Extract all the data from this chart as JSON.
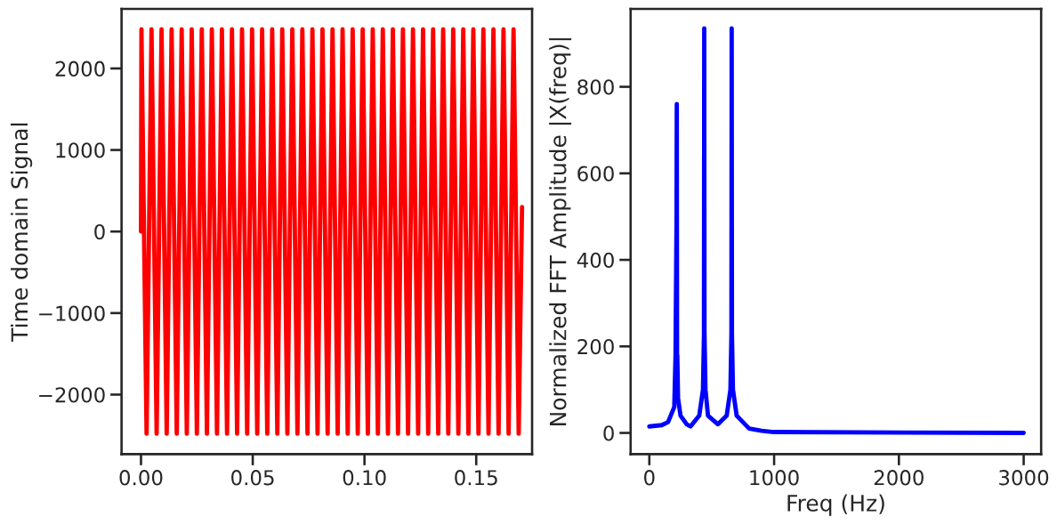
{
  "chart_data": [
    {
      "type": "line",
      "ylabel": "Time domain Signal",
      "xlim": [
        -0.0087,
        0.175
      ],
      "xticks": [
        {
          "value": 0,
          "label": "0.00"
        },
        {
          "value": 0.05,
          "label": "0.05"
        },
        {
          "value": 0.1,
          "label": "0.10"
        },
        {
          "value": 0.15,
          "label": "0.15"
        }
      ],
      "ylim": [
        -2730,
        2730
      ],
      "yticks": [
        {
          "value": -2000,
          "label": "−2000"
        },
        {
          "value": -1000,
          "label": "−1000"
        },
        0,
        1000,
        2000
      ],
      "grid": false,
      "legend": false,
      "series": [
        {
          "color": "#ff0000",
          "x": [
            0,
            0.0002,
            0.0025,
            0.0047,
            0.007,
            0.0092,
            0.0115,
            0.0137,
            0.016,
            0.0182,
            0.0205,
            0.0227,
            0.025,
            0.0272,
            0.0295,
            0.0317,
            0.034,
            0.0362,
            0.0385,
            0.0407,
            0.043,
            0.0452,
            0.0475,
            0.0497,
            0.052,
            0.0542,
            0.0565,
            0.0587,
            0.061,
            0.0632,
            0.0655,
            0.0677,
            0.07,
            0.0722,
            0.0745,
            0.0767,
            0.079,
            0.0812,
            0.0835,
            0.0857,
            0.088,
            0.0902,
            0.0925,
            0.0947,
            0.097,
            0.0992,
            0.1015,
            0.1037,
            0.106,
            0.1082,
            0.1105,
            0.1127,
            0.115,
            0.1172,
            0.1195,
            0.1217,
            0.124,
            0.1262,
            0.1285,
            0.1307,
            0.133,
            0.1352,
            0.1375,
            0.1397,
            0.142,
            0.1442,
            0.1465,
            0.1487,
            0.151,
            0.1532,
            0.1555,
            0.1577,
            0.16,
            0.1622,
            0.1645,
            0.1667,
            0.169,
            0.1705
          ],
          "values": [
            0,
            2480,
            -2480,
            2480,
            -2480,
            2480,
            -2480,
            2480,
            -2480,
            2480,
            -2480,
            2480,
            -2480,
            2480,
            -2480,
            2480,
            -2480,
            2480,
            -2480,
            2480,
            -2480,
            2480,
            -2480,
            2480,
            -2480,
            2480,
            -2480,
            2480,
            -2480,
            2480,
            -2480,
            2480,
            -2480,
            2480,
            -2480,
            2480,
            -2480,
            2480,
            -2480,
            2480,
            -2480,
            2480,
            -2480,
            2480,
            -2480,
            2480,
            -2480,
            2480,
            -2480,
            2480,
            -2480,
            2480,
            -2480,
            2480,
            -2480,
            2480,
            -2480,
            2480,
            -2480,
            2480,
            -2480,
            2480,
            -2480,
            2480,
            -2480,
            2480,
            -2480,
            2480,
            -2480,
            2480,
            -2480,
            2480,
            -2480,
            2480,
            -2480,
            2480,
            -2480,
            300
          ]
        }
      ]
    },
    {
      "type": "line",
      "xlabel": "Freq (Hz)",
      "ylabel": "Normalized FFT Amplitude |X(freq)|",
      "xlim": [
        -150,
        3140
      ],
      "xticks": [
        0,
        1000,
        2000,
        3000
      ],
      "ylim": [
        -49,
        980
      ],
      "yticks": [
        0,
        200,
        400,
        600,
        800
      ],
      "grid": false,
      "legend": false,
      "series": [
        {
          "color": "#0000ff",
          "x": [
            0,
            100,
            150,
            200,
            210,
            218,
            220,
            222,
            224,
            230,
            250,
            300,
            330,
            400,
            430,
            438,
            440,
            442,
            450,
            470,
            550,
            620,
            650,
            658,
            660,
            662,
            670,
            700,
            800,
            900,
            1000,
            3000
          ],
          "values": [
            15,
            18,
            25,
            60,
            180,
            490,
            760,
            180,
            180,
            80,
            40,
            20,
            15,
            40,
            100,
            230,
            935,
            230,
            100,
            40,
            20,
            40,
            100,
            230,
            935,
            230,
            100,
            40,
            10,
            5,
            2,
            0
          ]
        }
      ]
    }
  ]
}
